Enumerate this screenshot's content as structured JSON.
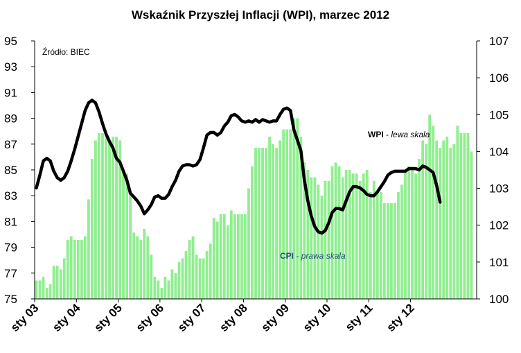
{
  "chart_data": {
    "type": "bar+line",
    "title": "Wskaźnik Przyszłej Inflacji (WPI), marzec 2012",
    "source": "Źródło: BIEC",
    "x_tick_labels": [
      "sty 03",
      "sty 04",
      "sty 05",
      "sty 06",
      "sty 07",
      "sty 08",
      "sty 09",
      "sty 10",
      "sty 11",
      "sty 12"
    ],
    "y_left": {
      "min": 75,
      "max": 95,
      "ticks": [
        75,
        77,
        79,
        81,
        83,
        85,
        87,
        89,
        91,
        93,
        95
      ]
    },
    "y_right": {
      "min": 100,
      "max": 107,
      "ticks": [
        100,
        101,
        102,
        103,
        104,
        105,
        106,
        107
      ]
    },
    "grid": false,
    "series": [
      {
        "name": "CPI",
        "name_suffix": "prawa skala",
        "axis": "right",
        "type": "bar",
        "color": "#90ee90",
        "start_month": "2003-01",
        "values": [
          100.5,
          100.5,
          100.6,
          100.3,
          100.4,
          100.9,
          100.9,
          100.8,
          101.1,
          101.6,
          101.7,
          101.6,
          101.6,
          101.6,
          101.7,
          102.7,
          103.8,
          104.3,
          104.5,
          104.5,
          104.5,
          104.3,
          104.4,
          104.4,
          104.3,
          103.5,
          103.4,
          102.9,
          101.8,
          101.7,
          101.6,
          101.9,
          101.7,
          101.2,
          100.6,
          100.5,
          100.3,
          100.6,
          100.5,
          100.8,
          100.7,
          101.0,
          101.1,
          101.3,
          101.6,
          101.7,
          101.2,
          101.1,
          101.1,
          101.3,
          101.5,
          102.2,
          102.1,
          102.3,
          102.3,
          102.0,
          102.4,
          102.3,
          102.3,
          102.3,
          102.3,
          103.0,
          103.6,
          104.1,
          104.1,
          104.1,
          104.1,
          104.4,
          104.2,
          104.1,
          104.3,
          104.6,
          104.6,
          104.6,
          104.9,
          104.9,
          104.4,
          103.7,
          103.5,
          103.3,
          103.3,
          103.1,
          102.8,
          103.2,
          103.2,
          103.6,
          103.7,
          103.6,
          103.3,
          103.5,
          103.5,
          103.4,
          103.4,
          103.2,
          103.4,
          103.5,
          102.9,
          103.2,
          102.9,
          102.9,
          102.6,
          102.6,
          102.6,
          102.6,
          102.9,
          103.1,
          103.5,
          103.6,
          103.6,
          103.4,
          103.8,
          104.3,
          104.2,
          105.0,
          104.7,
          104.3,
          104.1,
          104.3,
          104.4,
          104.1,
          104.2,
          104.7,
          104.5,
          104.5,
          104.5,
          104.0
        ],
        "label": "CPI"
      },
      {
        "name": "WPI",
        "name_suffix": "lewa skala",
        "axis": "left",
        "type": "line",
        "color": "#000000",
        "start_month": "2003-01",
        "values": [
          83.6,
          84.6,
          85.7,
          85.9,
          85.7,
          84.9,
          84.4,
          84.2,
          84.4,
          84.9,
          85.7,
          86.6,
          87.6,
          88.6,
          89.6,
          90.2,
          90.4,
          90.2,
          89.5,
          88.6,
          87.8,
          87.2,
          86.7,
          85.9,
          85.6,
          84.9,
          84.2,
          83.2,
          82.9,
          82.6,
          82.2,
          81.6,
          81.9,
          82.3,
          82.9,
          83.0,
          82.8,
          82.8,
          83.1,
          83.7,
          84.2,
          84.9,
          85.3,
          85.4,
          85.4,
          85.3,
          85.4,
          85.8,
          86.7,
          87.7,
          87.9,
          87.9,
          87.7,
          87.9,
          88.4,
          88.7,
          89.2,
          89.3,
          89.1,
          88.8,
          88.7,
          88.8,
          88.7,
          88.9,
          88.7,
          88.9,
          88.8,
          88.7,
          88.8,
          88.8,
          89.3,
          89.7,
          89.8,
          89.6,
          88.1,
          87.3,
          86.5,
          84.2,
          82.6,
          81.4,
          80.6,
          80.2,
          80.1,
          80.3,
          80.9,
          81.7,
          82.0,
          82.0,
          81.9,
          82.6,
          83.3,
          83.7,
          83.7,
          83.6,
          83.4,
          83.1,
          83.0,
          83.0,
          83.3,
          83.7,
          84.1,
          84.6,
          84.8,
          84.9,
          84.9,
          84.9,
          84.9,
          85.1,
          85.1,
          85.1,
          85.0,
          85.3,
          85.2,
          85.0,
          84.8,
          83.8,
          82.5
        ],
        "label": "WPI"
      }
    ]
  }
}
